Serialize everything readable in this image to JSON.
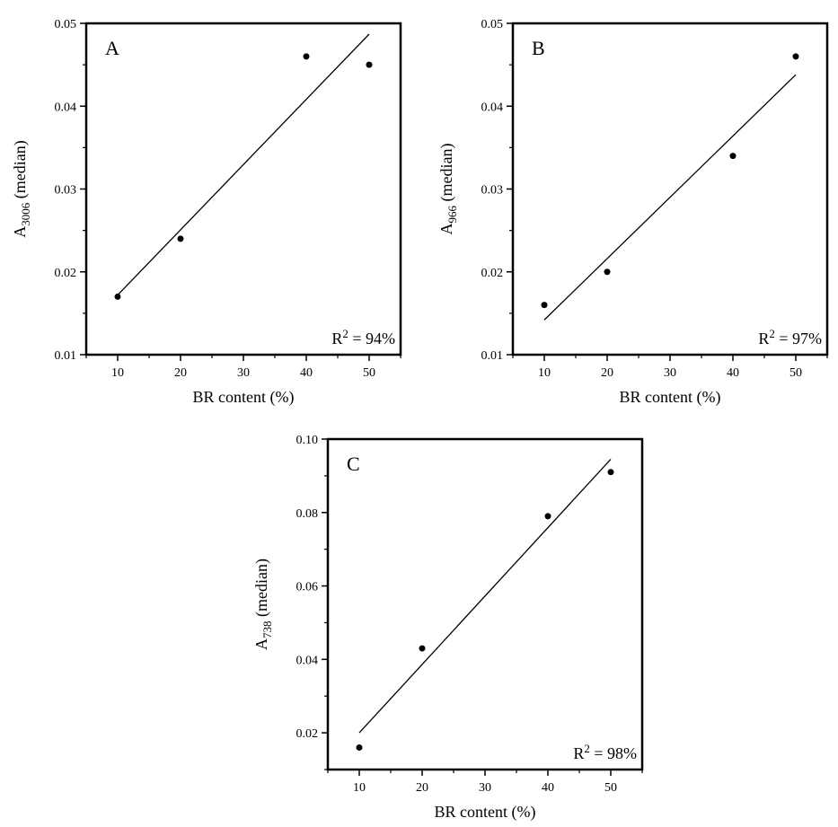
{
  "chart_data": [
    {
      "type": "scatter",
      "panel_label": "A",
      "xlabel": "BR content (%)",
      "ylabel": {
        "main": "A",
        "sub": "3006",
        "tail": " (median)"
      },
      "xlim": [
        5,
        55
      ],
      "ylim": [
        0.01,
        0.05
      ],
      "xticks": [
        10,
        20,
        30,
        40,
        50
      ],
      "yticks": [
        0.01,
        0.02,
        0.03,
        0.04,
        0.05
      ],
      "ytick_labels": [
        "0.01",
        "0.02",
        "0.03",
        "0.04",
        "0.05"
      ],
      "points": [
        {
          "x": 10,
          "y": 0.017
        },
        {
          "x": 20,
          "y": 0.024
        },
        {
          "x": 40,
          "y": 0.046
        },
        {
          "x": 50,
          "y": 0.045
        }
      ],
      "fit_line": [
        {
          "x": 10,
          "y": 0.0172
        },
        {
          "x": 50,
          "y": 0.0487
        }
      ],
      "r2_label": {
        "lhs": "R",
        "sup": "2",
        "rhs": " = 94%"
      }
    },
    {
      "type": "scatter",
      "panel_label": "B",
      "xlabel": "BR content (%)",
      "ylabel": {
        "main": "A",
        "sub": "966",
        "tail": " (median)"
      },
      "xlim": [
        5,
        55
      ],
      "ylim": [
        0.01,
        0.05
      ],
      "xticks": [
        10,
        20,
        30,
        40,
        50
      ],
      "yticks": [
        0.01,
        0.02,
        0.03,
        0.04,
        0.05
      ],
      "ytick_labels": [
        "0.01",
        "0.02",
        "0.03",
        "0.04",
        "0.05"
      ],
      "points": [
        {
          "x": 10,
          "y": 0.016
        },
        {
          "x": 20,
          "y": 0.02
        },
        {
          "x": 40,
          "y": 0.034
        },
        {
          "x": 50,
          "y": 0.046
        }
      ],
      "fit_line": [
        {
          "x": 10,
          "y": 0.0142
        },
        {
          "x": 50,
          "y": 0.0438
        }
      ],
      "r2_label": {
        "lhs": "R",
        "sup": "2",
        "rhs": " = 97%"
      }
    },
    {
      "type": "scatter",
      "panel_label": "C",
      "xlabel": "BR content (%)",
      "ylabel": {
        "main": "A",
        "sub": "738",
        "tail": " (median)"
      },
      "xlim": [
        5,
        55
      ],
      "ylim": [
        0.01,
        0.1
      ],
      "xticks": [
        10,
        20,
        30,
        40,
        50
      ],
      "yticks": [
        0.02,
        0.04,
        0.06,
        0.08,
        0.1
      ],
      "ytick_labels": [
        "0.02",
        "0.04",
        "0.06",
        "0.08",
        "0.10"
      ],
      "points": [
        {
          "x": 10,
          "y": 0.016
        },
        {
          "x": 20,
          "y": 0.043
        },
        {
          "x": 40,
          "y": 0.079
        },
        {
          "x": 50,
          "y": 0.091
        }
      ],
      "fit_line": [
        {
          "x": 10,
          "y": 0.02
        },
        {
          "x": 50,
          "y": 0.0945
        }
      ],
      "r2_label": {
        "lhs": "R",
        "sup": "2",
        "rhs": " = 98%"
      }
    }
  ]
}
